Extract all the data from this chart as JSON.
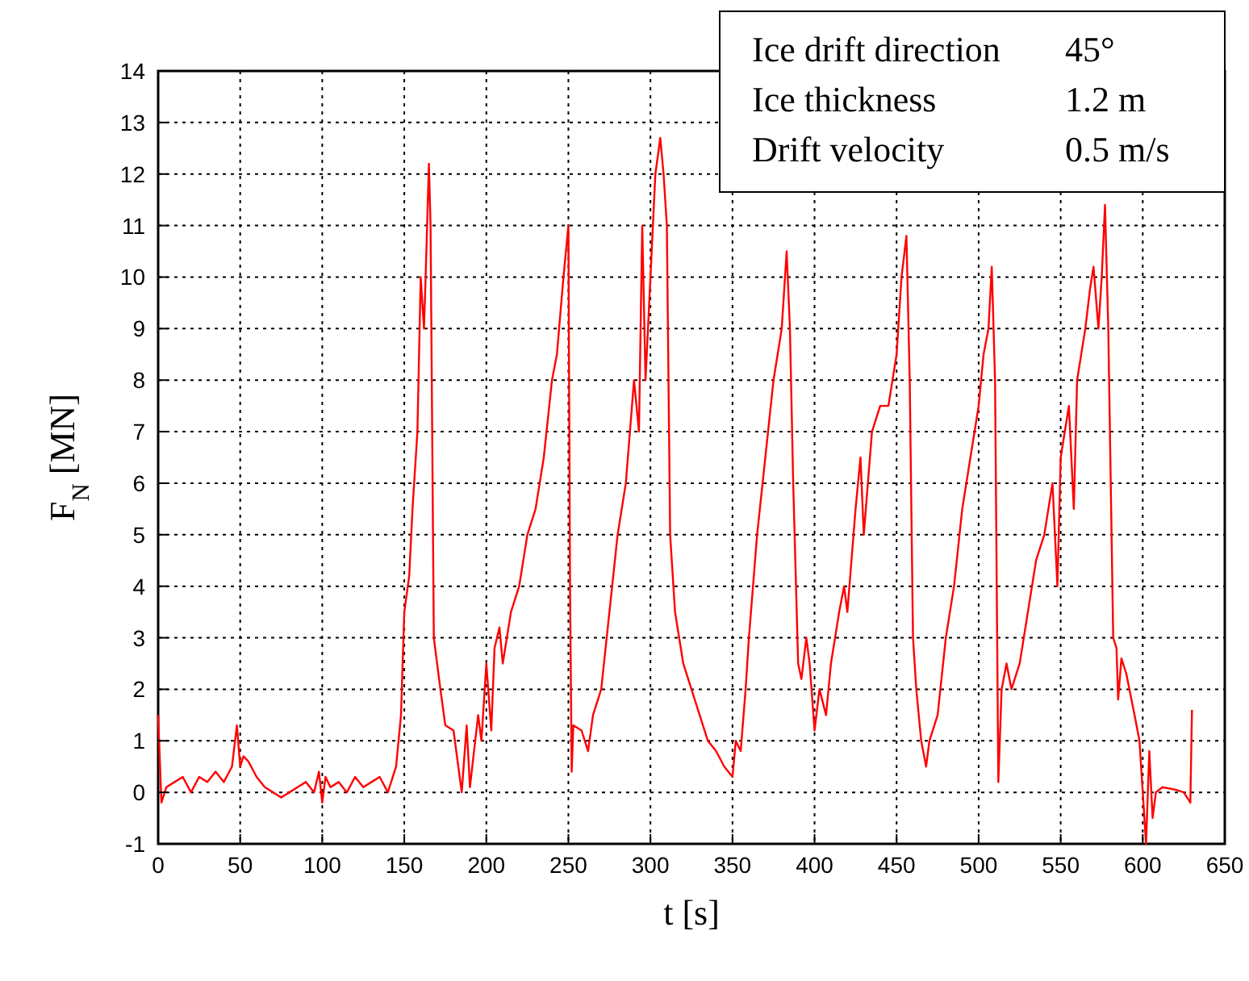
{
  "chart_data": {
    "type": "line",
    "xlabel": "t [s]",
    "ylabel": "F$_{N}$ [MN]",
    "annotations": [
      "Ice drift direction",
      "45°",
      "Ice thickness",
      "1.2 m",
      "Drift velocity",
      "0.5 m/s"
    ],
    "xlim": [
      0,
      650
    ],
    "xticks": [
      0,
      50,
      100,
      150,
      200,
      250,
      300,
      350,
      400,
      450,
      500,
      550,
      600,
      650
    ],
    "ylim": [
      -1,
      14
    ],
    "yticks": [
      -1,
      0,
      1,
      2,
      3,
      4,
      5,
      6,
      7,
      8,
      9,
      10,
      11,
      12,
      13,
      14
    ],
    "grid": true,
    "line_style": "solid",
    "series": [
      {
        "color": "#ff0000",
        "x": [
          0,
          2,
          5,
          10,
          15,
          20,
          25,
          30,
          35,
          40,
          45,
          48,
          50,
          52,
          55,
          60,
          65,
          70,
          75,
          80,
          85,
          90,
          95,
          98,
          100,
          102,
          105,
          110,
          115,
          120,
          125,
          130,
          135,
          140,
          143,
          145,
          148,
          150,
          153,
          155,
          158,
          160,
          162,
          163,
          165,
          166,
          167,
          168,
          172,
          175,
          180,
          185,
          188,
          190,
          195,
          197,
          200,
          203,
          205,
          208,
          210,
          215,
          220,
          225,
          230,
          235,
          240,
          243,
          247,
          250,
          251,
          252,
          253,
          258,
          262,
          265,
          270,
          275,
          280,
          285,
          290,
          293,
          295,
          297,
          300,
          303,
          306,
          308,
          310,
          312,
          315,
          320,
          325,
          330,
          335,
          340,
          345,
          350,
          352,
          355,
          358,
          360,
          365,
          370,
          375,
          380,
          383,
          385,
          387,
          390,
          392,
          395,
          397,
          400,
          403,
          407,
          410,
          415,
          418,
          420,
          425,
          428,
          430,
          435,
          440,
          445,
          450,
          453,
          456,
          458,
          460,
          462,
          465,
          468,
          470,
          475,
          480,
          485,
          490,
          495,
          500,
          503,
          506,
          508,
          510,
          512,
          514,
          517,
          520,
          525,
          530,
          535,
          540,
          545,
          548,
          550,
          555,
          558,
          560,
          565,
          568,
          570,
          573,
          575,
          577,
          579,
          580,
          582,
          584,
          585,
          587,
          590,
          595,
          598,
          600,
          602,
          604,
          606,
          608,
          612,
          620,
          625,
          629,
          630
        ],
        "values": [
          1.5,
          -0.2,
          0.1,
          0.2,
          0.3,
          0,
          0.3,
          0.2,
          0.4,
          0.2,
          0.5,
          1.3,
          0.5,
          0.7,
          0.6,
          0.3,
          0.1,
          0,
          -0.1,
          0,
          0.1,
          0.2,
          0,
          0.4,
          -0.2,
          0.3,
          0.1,
          0.2,
          0,
          0.3,
          0.1,
          0.2,
          0.3,
          0,
          0.3,
          0.5,
          1.5,
          3.5,
          4.2,
          5.5,
          7,
          10,
          9,
          10,
          12.2,
          11,
          7,
          3,
          2,
          1.3,
          1.2,
          0,
          1.3,
          0.1,
          1.5,
          1,
          2.5,
          1.2,
          2.8,
          3.2,
          2.5,
          3.5,
          4,
          5,
          5.5,
          6.5,
          8,
          8.5,
          10,
          11,
          4,
          0.4,
          1.3,
          1.2,
          0.8,
          1.5,
          2,
          3.5,
          5,
          6,
          8,
          7,
          11,
          8,
          10,
          12,
          12.7,
          12,
          11,
          5,
          3.5,
          2.5,
          2,
          1.5,
          1,
          0.8,
          0.5,
          0.3,
          1,
          0.8,
          2,
          3,
          5,
          6.5,
          8,
          9,
          10.5,
          9,
          6,
          2.5,
          2.2,
          3,
          2.5,
          1.2,
          2,
          1.5,
          2.5,
          3.5,
          4,
          3.5,
          5.5,
          6.5,
          5,
          7,
          7.5,
          7.5,
          8.5,
          10,
          10.8,
          8,
          3,
          2,
          1,
          0.5,
          1,
          1.5,
          3,
          4,
          5.5,
          6.5,
          7.5,
          8.5,
          9,
          10.2,
          8,
          0.2,
          2,
          2.5,
          2,
          2.5,
          3.5,
          4.5,
          5,
          6,
          4,
          6.5,
          7.5,
          5.5,
          8,
          9,
          9.8,
          10.2,
          9,
          10,
          11.4,
          9,
          7,
          3,
          2.8,
          1.8,
          2.6,
          2.3,
          1.5,
          1,
          0,
          -1,
          0.8,
          -0.5,
          0,
          0.1,
          0.05,
          0,
          -0.2,
          1.6
        ]
      }
    ]
  }
}
